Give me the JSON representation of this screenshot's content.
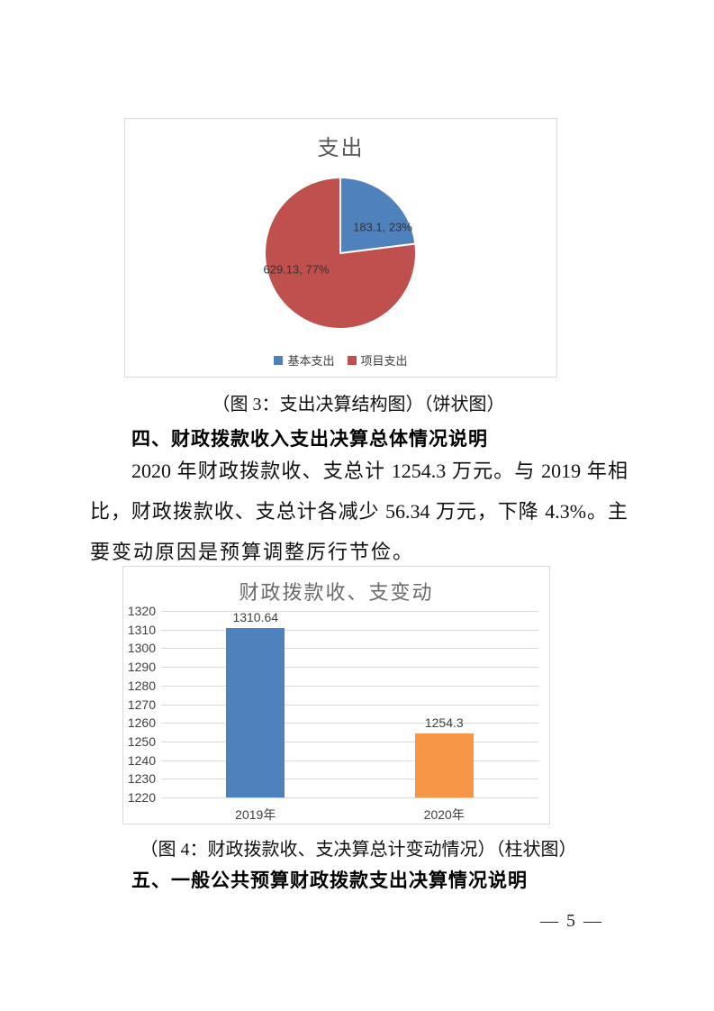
{
  "figure3": {
    "caption": "（图 3：支出决算结构图）（饼状图）"
  },
  "section4": {
    "heading": "四、财政拨款收入支出决算总体情况说明",
    "lines": [
      "2020 年财政拨款收、支总计 1254.3 万元。与 2019 年相",
      "比，财政拨款收、支总计各减少 56.34 万元，下降 4.3%。主",
      "要变动原因是预算调整厉行节俭。"
    ]
  },
  "figure4": {
    "caption": "（图 4：财政拨款收、支决算总计变动情况）（柱状图）"
  },
  "section5": {
    "heading": "五、一般公共预算财政拨款支出决算情况说明"
  },
  "page": {
    "number_label": "— 5 —"
  },
  "chart_data": [
    {
      "type": "pie",
      "title": "支出",
      "start_angle": "top, clockwise",
      "legend_position": "bottom",
      "series": [
        {
          "name": "基本支出",
          "value": 183.1,
          "pct": 23,
          "label": "183.1, 23%",
          "color": "#4F81BD"
        },
        {
          "name": "项目支出",
          "value": 629.13,
          "pct": 77,
          "label": "629.13, 77%",
          "color": "#C0504D"
        }
      ]
    },
    {
      "type": "bar",
      "title": "财政拨款收、支变动",
      "categories": [
        "2019年",
        "2020年"
      ],
      "values": [
        1310.64,
        1254.3
      ],
      "labels": [
        "1310.64",
        "1254.3"
      ],
      "colors": [
        "#4F81BD",
        "#F79646"
      ],
      "ylim": [
        1220,
        1320
      ],
      "ytick_step": 10,
      "grid": true,
      "legend_position": "none"
    }
  ]
}
